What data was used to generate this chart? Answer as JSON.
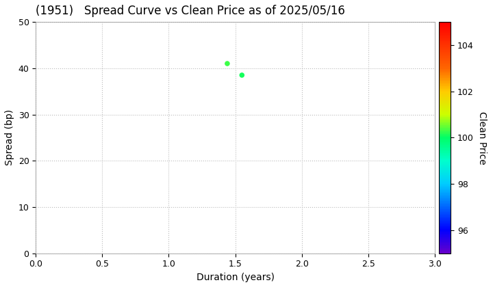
{
  "title": "(1951)   Spread Curve vs Clean Price as of 2025/05/16",
  "xlabel": "Duration (years)",
  "ylabel": "Spread (bp)",
  "colorbar_label": "Clean Price",
  "xlim": [
    0.0,
    3.0
  ],
  "ylim": [
    0,
    50
  ],
  "xticks": [
    0.0,
    0.5,
    1.0,
    1.5,
    2.0,
    2.5,
    3.0
  ],
  "yticks": [
    0,
    10,
    20,
    30,
    40,
    50
  ],
  "colorbar_ticks": [
    96,
    98,
    100,
    102,
    104
  ],
  "colorbar_vmin": 95,
  "colorbar_vmax": 105,
  "points": [
    {
      "duration": 1.44,
      "spread": 41.0,
      "clean_price": 100.3
    },
    {
      "duration": 1.55,
      "spread": 38.5,
      "clean_price": 100.1
    }
  ],
  "marker_size": 30,
  "background_color": "#ffffff",
  "grid_color": "#bbbbbb",
  "title_fontsize": 12,
  "axis_fontsize": 10,
  "tick_fontsize": 9,
  "colormap_colors": [
    "#6600cc",
    "#0000ff",
    "#0066ff",
    "#00ccff",
    "#00ffcc",
    "#00ff66",
    "#ccff00",
    "#ffcc00",
    "#ff6600",
    "#ff0000"
  ],
  "colormap_positions": [
    0.0,
    0.1,
    0.2,
    0.3,
    0.4,
    0.5,
    0.6,
    0.7,
    0.8,
    1.0
  ]
}
